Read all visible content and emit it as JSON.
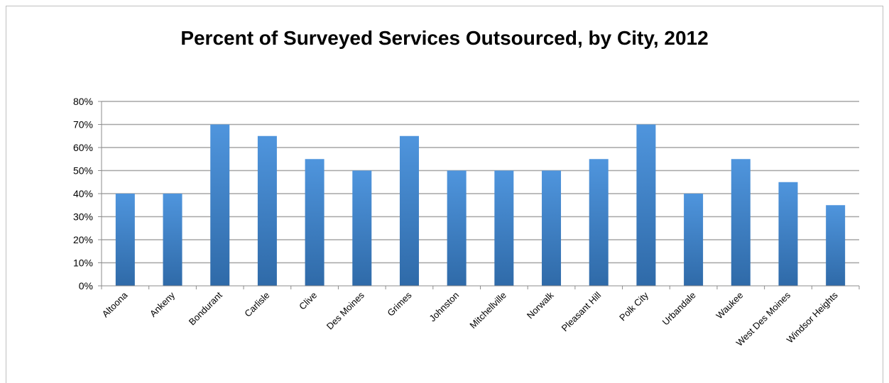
{
  "chart_data": {
    "type": "bar",
    "title": "Percent of Surveyed Services Outsourced, by City, 2012",
    "xlabel": "",
    "ylabel": "",
    "ylim": [
      0,
      80
    ],
    "y_ticks": [
      "0%",
      "10%",
      "20%",
      "30%",
      "40%",
      "50%",
      "60%",
      "70%",
      "80%"
    ],
    "grid": true,
    "legend": "none",
    "bar_color": "#3f7fc0",
    "categories": [
      "Altoona",
      "Ankeny",
      "Bondurant",
      "Carlisle",
      "Clive",
      "Des Moines",
      "Grimes",
      "Johnston",
      "Mitchellville",
      "Norwalk",
      "Pleasant Hill",
      "Polk City",
      "Urbandale",
      "Waukee",
      "West Des Moines",
      "Windsor Heights"
    ],
    "values": [
      40,
      40,
      70,
      65,
      55,
      50,
      65,
      50,
      50,
      50,
      55,
      70,
      40,
      55,
      45,
      35
    ]
  }
}
